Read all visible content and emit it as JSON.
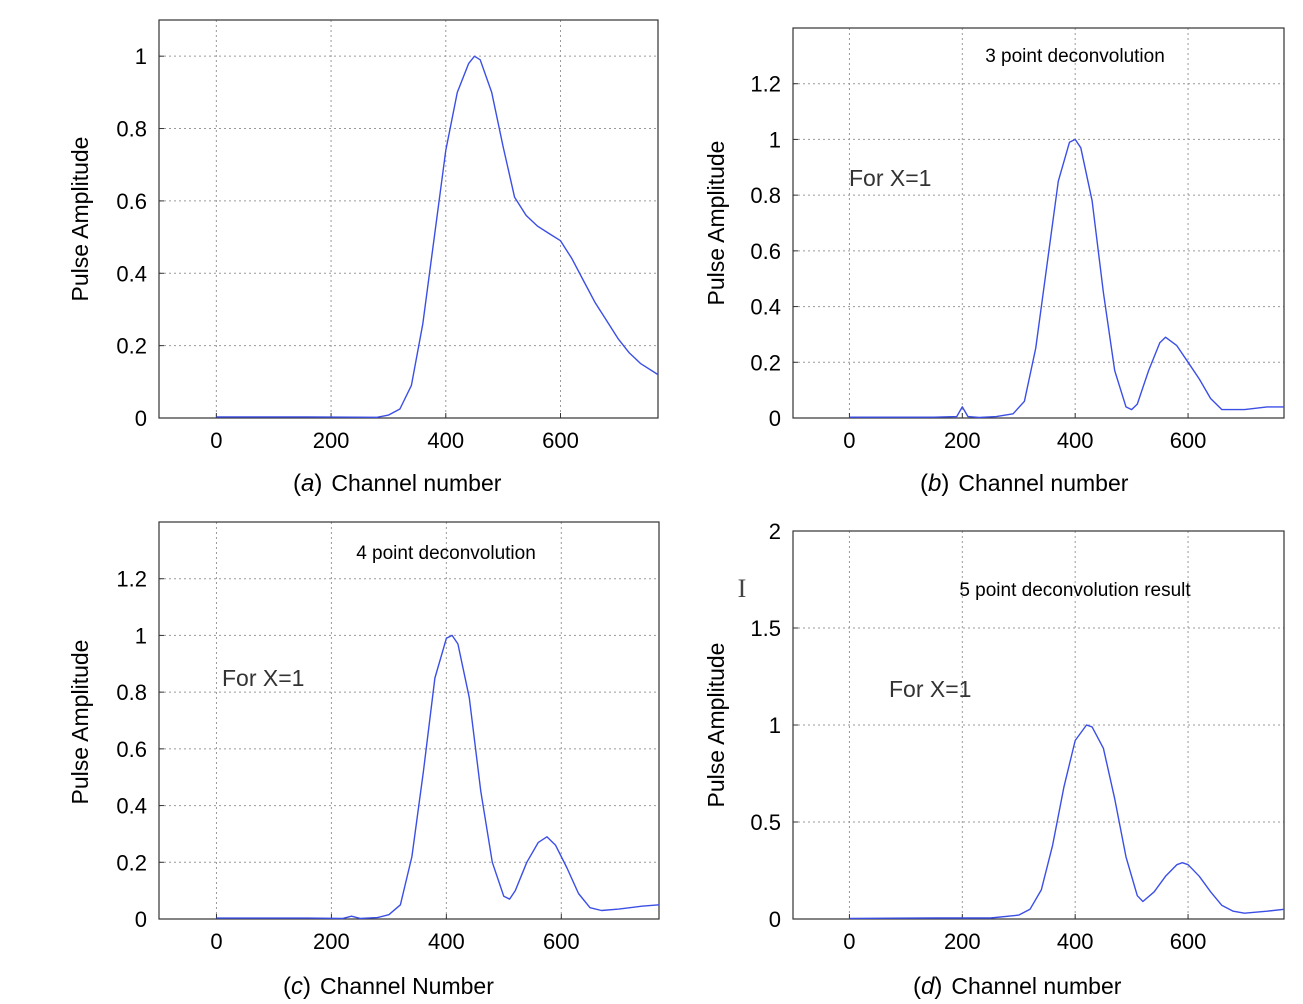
{
  "chart_data": [
    {
      "type": "line",
      "panel_label": "a",
      "title": "",
      "annotation": "",
      "xlabel": "Channel number",
      "ylabel": "Pulse Amplitude",
      "xlim": [
        -100,
        770
      ],
      "ylim": [
        0,
        1.1
      ],
      "xticks": [
        "0",
        "200",
        "400",
        "600"
      ],
      "yticks": [
        "0",
        "0.2",
        "0.4",
        "0.6",
        "0.8",
        "1"
      ],
      "grid": true,
      "series": [
        {
          "color": "#3b4fe6",
          "x": [
            0,
            160,
            280,
            300,
            320,
            340,
            360,
            380,
            400,
            420,
            440,
            450,
            460,
            480,
            500,
            520,
            540,
            560,
            580,
            600,
            620,
            640,
            660,
            680,
            700,
            720,
            740,
            770
          ],
          "y": [
            0.003,
            0.003,
            0.002,
            0.008,
            0.025,
            0.09,
            0.26,
            0.5,
            0.74,
            0.9,
            0.98,
            1.0,
            0.99,
            0.9,
            0.75,
            0.61,
            0.56,
            0.53,
            0.51,
            0.49,
            0.44,
            0.38,
            0.32,
            0.27,
            0.22,
            0.18,
            0.15,
            0.12
          ]
        }
      ]
    },
    {
      "type": "line",
      "panel_label": "b",
      "title": "3 point deconvolution",
      "annotation": "For X=1",
      "xlabel": "Channel number",
      "ylabel": "Pulse Amplitude",
      "xlim": [
        -100,
        770
      ],
      "ylim": [
        0,
        1.4
      ],
      "xticks": [
        "0",
        "200",
        "400",
        "600"
      ],
      "yticks": [
        "0",
        "0.2",
        "0.4",
        "0.6",
        "0.8",
        "1",
        "1.2"
      ],
      "grid": true,
      "series": [
        {
          "color": "#3b4fe6",
          "x": [
            0,
            150,
            190,
            200,
            210,
            230,
            260,
            290,
            310,
            330,
            350,
            370,
            390,
            400,
            410,
            430,
            450,
            470,
            490,
            500,
            510,
            530,
            550,
            560,
            580,
            600,
            620,
            640,
            660,
            700,
            740,
            770
          ],
          "y": [
            0.003,
            0.003,
            0.005,
            0.04,
            0.005,
            0.002,
            0.005,
            0.015,
            0.06,
            0.25,
            0.55,
            0.85,
            0.99,
            1.0,
            0.97,
            0.78,
            0.45,
            0.17,
            0.04,
            0.03,
            0.05,
            0.17,
            0.27,
            0.29,
            0.26,
            0.2,
            0.14,
            0.07,
            0.03,
            0.03,
            0.04,
            0.04
          ]
        }
      ]
    },
    {
      "type": "line",
      "panel_label": "c",
      "title": "4 point deconvolution",
      "annotation": "For X=1",
      "xlabel": "Channel Number",
      "ylabel": "Pulse Amplitude",
      "xlim": [
        -100,
        770
      ],
      "ylim": [
        0,
        1.4
      ],
      "xticks": [
        "0",
        "200",
        "400",
        "600"
      ],
      "yticks": [
        "0",
        "0.2",
        "0.4",
        "0.6",
        "0.8",
        "1",
        "1.2"
      ],
      "grid": true,
      "series": [
        {
          "color": "#3b4fe6",
          "x": [
            0,
            160,
            220,
            235,
            250,
            280,
            300,
            320,
            340,
            360,
            380,
            400,
            410,
            420,
            440,
            460,
            480,
            500,
            510,
            520,
            540,
            560,
            575,
            590,
            610,
            630,
            650,
            670,
            700,
            740,
            770
          ],
          "y": [
            0.003,
            0.003,
            0.002,
            0.01,
            0.002,
            0.005,
            0.015,
            0.05,
            0.22,
            0.52,
            0.85,
            0.99,
            1.0,
            0.97,
            0.78,
            0.45,
            0.2,
            0.08,
            0.07,
            0.1,
            0.2,
            0.27,
            0.29,
            0.26,
            0.18,
            0.09,
            0.04,
            0.03,
            0.035,
            0.045,
            0.05
          ]
        }
      ]
    },
    {
      "type": "line",
      "panel_label": "d",
      "title": "5 point deconvolution result",
      "annotation": "For X=1",
      "xlabel": "Channel number",
      "ylabel": "Pulse Amplitude",
      "xlim": [
        -100,
        770
      ],
      "ylim": [
        0,
        2
      ],
      "xticks": [
        "0",
        "200",
        "400",
        "600"
      ],
      "yticks": [
        "0",
        "0.5",
        "1",
        "1.5",
        "2"
      ],
      "grid": true,
      "series": [
        {
          "color": "#3b4fe6",
          "x": [
            0,
            150,
            250,
            300,
            320,
            340,
            360,
            380,
            400,
            420,
            430,
            450,
            470,
            490,
            510,
            520,
            540,
            560,
            580,
            590,
            600,
            620,
            640,
            660,
            680,
            700,
            740,
            770
          ],
          "y": [
            0.003,
            0.005,
            0.005,
            0.02,
            0.05,
            0.15,
            0.38,
            0.68,
            0.92,
            1.0,
            0.99,
            0.88,
            0.62,
            0.32,
            0.12,
            0.09,
            0.14,
            0.22,
            0.28,
            0.29,
            0.28,
            0.22,
            0.14,
            0.07,
            0.04,
            0.03,
            0.04,
            0.05
          ]
        }
      ]
    }
  ],
  "cursor_icon": "text-cursor-icon"
}
